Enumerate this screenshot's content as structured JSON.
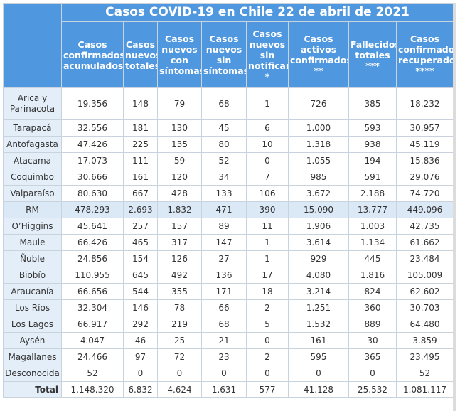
{
  "title": "Casos COVID-19 en Chile 22 de abril de 2021",
  "columns": [
    "Casos confirmados acumulados",
    "Casos nuevos totales",
    "Casos nuevos con síntomas",
    "Casos nuevos sin síntomas",
    "Casos nuevos sin notificar *",
    "Casos activos confirmados **",
    "Fallecidos totales ***",
    "Casos confirmados recuperados ****"
  ],
  "rows": [
    [
      "Arica y Parinacota",
      "19.356",
      "148",
      "79",
      "68",
      "1",
      "726",
      "385",
      "18.232"
    ],
    [
      "Tarapacá",
      "32.556",
      "181",
      "130",
      "45",
      "6",
      "1.000",
      "593",
      "30.957"
    ],
    [
      "Antofagasta",
      "47.426",
      "225",
      "135",
      "80",
      "10",
      "1.318",
      "938",
      "45.119"
    ],
    [
      "Atacama",
      "17.073",
      "111",
      "59",
      "52",
      "0",
      "1.055",
      "194",
      "15.836"
    ],
    [
      "Coquimbo",
      "30.666",
      "161",
      "120",
      "34",
      "7",
      "985",
      "591",
      "29.076"
    ],
    [
      "Valparaíso",
      "80.630",
      "667",
      "428",
      "133",
      "106",
      "3.672",
      "2.188",
      "74.720"
    ],
    [
      "RM",
      "478.293",
      "2.693",
      "1.832",
      "471",
      "390",
      "15.090",
      "13.777",
      "449.096"
    ],
    [
      "O’Higgins",
      "45.641",
      "257",
      "157",
      "89",
      "11",
      "1.906",
      "1.003",
      "42.735"
    ],
    [
      "Maule",
      "66.426",
      "465",
      "317",
      "147",
      "1",
      "3.614",
      "1.134",
      "61.662"
    ],
    [
      "Ñuble",
      "24.856",
      "154",
      "126",
      "27",
      "1",
      "929",
      "445",
      "23.484"
    ],
    [
      "Biobío",
      "110.955",
      "645",
      "492",
      "136",
      "17",
      "4.080",
      "1.816",
      "105.009"
    ],
    [
      "Araucanía",
      "66.656",
      "544",
      "355",
      "171",
      "18",
      "3.214",
      "824",
      "62.602"
    ],
    [
      "Los Ríos",
      "32.304",
      "146",
      "78",
      "66",
      "2",
      "1.251",
      "360",
      "30.703"
    ],
    [
      "Los Lagos",
      "66.917",
      "292",
      "219",
      "68",
      "5",
      "1.532",
      "889",
      "64.480"
    ],
    [
      "Aysén",
      "4.047",
      "46",
      "25",
      "21",
      "0",
      "161",
      "30",
      "3.859"
    ],
    [
      "Magallanes",
      "24.466",
      "97",
      "72",
      "23",
      "2",
      "595",
      "365",
      "23.495"
    ],
    [
      "Desconocida",
      "52",
      "0",
      "0",
      "0",
      "0",
      "0",
      "0",
      "52"
    ]
  ],
  "total": [
    "Total",
    "1.148.320",
    "6.832",
    "4.624",
    "1.631",
    "577",
    "41.128",
    "25.532",
    "1.081.117"
  ]
}
